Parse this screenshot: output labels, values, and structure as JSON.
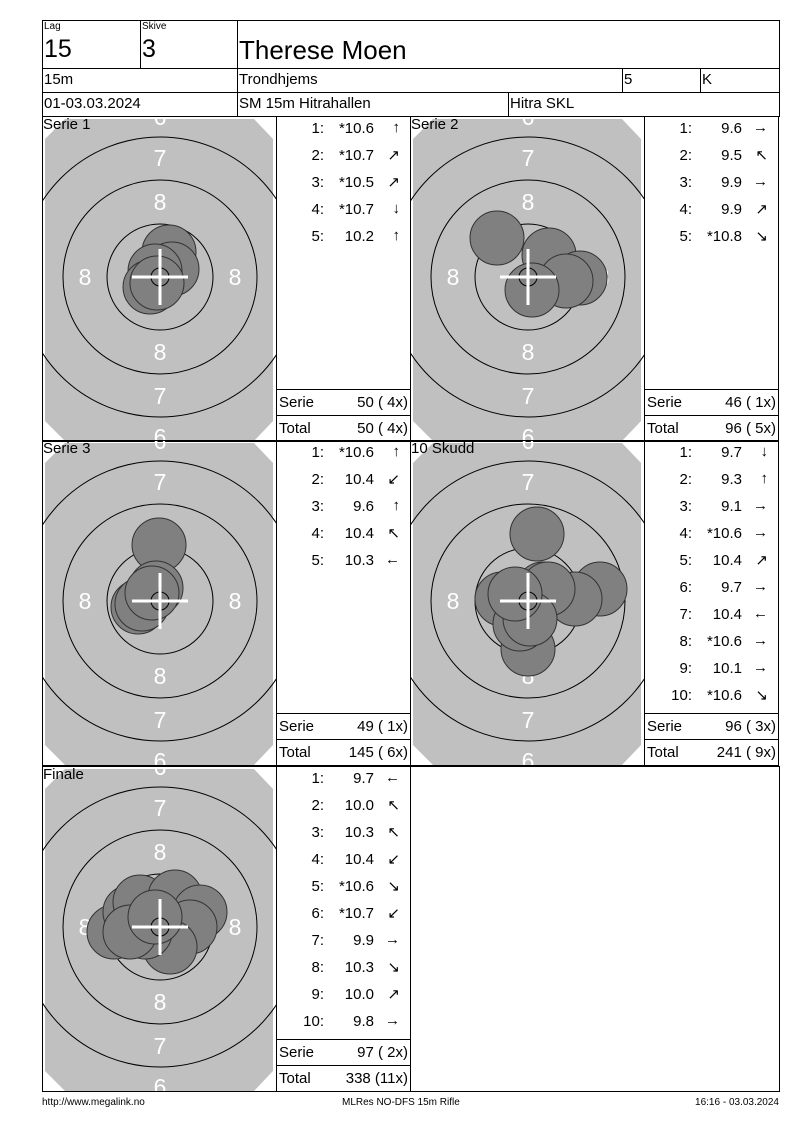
{
  "header": {
    "lag_label": "Lag",
    "lag": "15",
    "skive_label": "Skive",
    "skive": "3",
    "name": "Therese Moen",
    "distance": "15m",
    "club": "Trondhjems",
    "class_num": "5",
    "class_letter": "K",
    "date": "01-03.03.2024",
    "event": "SM 15m Hitrahallen",
    "venue": "Hitra SKL"
  },
  "target_labels": {
    "ring6": "6",
    "ring7": "7",
    "ring8": "8"
  },
  "panels": [
    {
      "title": "Serie 1",
      "shots": [
        [
          "1:",
          "*10.6",
          "↑"
        ],
        [
          "2:",
          "*10.7",
          "↗"
        ],
        [
          "3:",
          "*10.5",
          "↗"
        ],
        [
          "4:",
          "*10.7",
          "↓"
        ],
        [
          "5:",
          "10.2",
          "↑"
        ]
      ],
      "serie_label": "Serie",
      "serie": "50 ( 4x)",
      "total_label": "Total",
      "total": "50 ( 4x)"
    },
    {
      "title": "Serie 2",
      "shots": [
        [
          "1:",
          "9.6",
          "→"
        ],
        [
          "2:",
          "9.5",
          "↖"
        ],
        [
          "3:",
          "9.9",
          "→"
        ],
        [
          "4:",
          "9.9",
          "↗"
        ],
        [
          "5:",
          "*10.8",
          "↘"
        ]
      ],
      "serie_label": "Serie",
      "serie": "46 ( 1x)",
      "total_label": "Total",
      "total": "96 ( 5x)"
    },
    {
      "title": "Serie 3",
      "shots": [
        [
          "1:",
          "*10.6",
          "↑"
        ],
        [
          "2:",
          "10.4",
          "↙"
        ],
        [
          "3:",
          "9.6",
          "↑"
        ],
        [
          "4:",
          "10.4",
          "↖"
        ],
        [
          "5:",
          "10.3",
          "←"
        ]
      ],
      "serie_label": "Serie",
      "serie": "49 ( 1x)",
      "total_label": "Total",
      "total": "145 ( 6x)"
    },
    {
      "title": "10 Skudd",
      "shots": [
        [
          "1:",
          "9.7",
          "↓"
        ],
        [
          "2:",
          "9.3",
          "↑"
        ],
        [
          "3:",
          "9.1",
          "→"
        ],
        [
          "4:",
          "*10.6",
          "→"
        ],
        [
          "5:",
          "10.4",
          "↗"
        ],
        [
          "6:",
          "9.7",
          "→"
        ],
        [
          "7:",
          "10.4",
          "←"
        ],
        [
          "8:",
          "*10.6",
          "→"
        ],
        [
          "9:",
          "10.1",
          "→"
        ],
        [
          "10:",
          "*10.6",
          "↘"
        ]
      ],
      "serie_label": "Serie",
      "serie": "96 ( 3x)",
      "total_label": "Total",
      "total": "241 ( 9x)"
    },
    {
      "title": "Finale",
      "shots": [
        [
          "1:",
          "9.7",
          "←"
        ],
        [
          "2:",
          "10.0",
          "↖"
        ],
        [
          "3:",
          "10.3",
          "↖"
        ],
        [
          "4:",
          "10.4",
          "↙"
        ],
        [
          "5:",
          "*10.6",
          "↘"
        ],
        [
          "6:",
          "*10.7",
          "↙"
        ],
        [
          "7:",
          "9.9",
          "→"
        ],
        [
          "8:",
          "10.3",
          "↘"
        ],
        [
          "9:",
          "10.0",
          "↗"
        ],
        [
          "10:",
          "9.8",
          "→"
        ]
      ],
      "serie_label": "Serie",
      "serie": "97 ( 2x)",
      "total_label": "Total",
      "total": "338 (11x)"
    }
  ],
  "footer": {
    "url": "http://www.megalink.no",
    "software": "MLRes NO-DFS 15m Rifle",
    "timestamp": "16:16 - 03.03.2024"
  },
  "colors": {
    "target": "#c0c0c0",
    "shot": "#808080",
    "ring": "#000000",
    "label": "#ffffff"
  }
}
